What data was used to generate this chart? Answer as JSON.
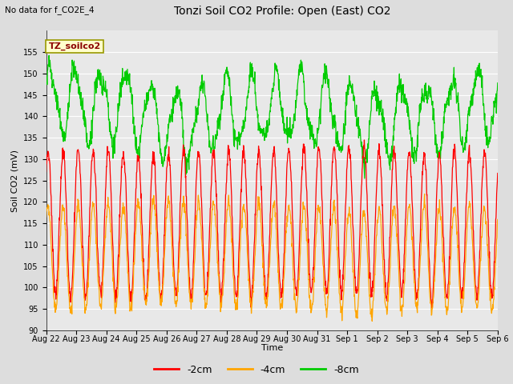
{
  "title": "Tonzi Soil CO2 Profile: Open (East) CO2",
  "subtitle": "No data for f_CO2E_4",
  "legend_label": "TZ_soilco2",
  "ylabel": "Soil CO2 (mV)",
  "xlabel": "Time",
  "ylim": [
    90,
    160
  ],
  "yticks": [
    90,
    95,
    100,
    105,
    110,
    115,
    120,
    125,
    130,
    135,
    140,
    145,
    150,
    155
  ],
  "xtick_labels": [
    "Aug 22",
    "Aug 23",
    "Aug 24",
    "Aug 25",
    "Aug 26",
    "Aug 27",
    "Aug 28",
    "Aug 29",
    "Aug 30",
    "Aug 31",
    "Sep 1",
    "Sep 2",
    "Sep 3",
    "Sep 4",
    "Sep 5",
    "Sep 6"
  ],
  "color_2cm": "#ff0000",
  "color_4cm": "#ffa500",
  "color_8cm": "#00cc00",
  "legend_items": [
    "-2cm",
    "-4cm",
    "-8cm"
  ],
  "n_days": 15,
  "n_points_per_day": 96,
  "seed": 12345,
  "cycles_per_day_red": 2.0,
  "cycles_per_day_green": 1.0,
  "base_2cm": 115,
  "amp_2cm": 17,
  "base_4cm": 107,
  "amp_4cm": 12,
  "base_8cm": 143,
  "amp_8cm": 8
}
